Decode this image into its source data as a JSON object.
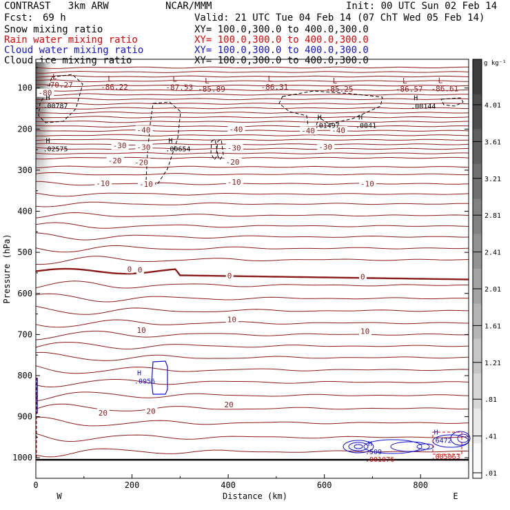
{
  "header": {
    "model": "CONTRAST   3km ARW",
    "org": "NCAR/MMM",
    "init": "Init: 00 UTC Sun 02 Feb 14",
    "fcst_label": "Fcst:",
    "fcst_value": "69 h",
    "valid": "Valid: 21 UTC Tue 04 Feb 14 (07 ChT Wed 05 Feb 14)"
  },
  "fields": [
    {
      "name": "Snow mixing ratio",
      "xy": "XY= 100.0,300.0 to 400.0,300.0",
      "color": "#000000"
    },
    {
      "name": "Rain water mixing ratio",
      "xy": "XY= 100.0,300.0 to 400.0,300.0",
      "color": "#e00000"
    },
    {
      "name": "Cloud water mixing ratio",
      "xy": "XY= 100.0,300.0 to 400.0,300.0",
      "color": "#1010d0"
    },
    {
      "name": "Cloud ice mixing ratio",
      "xy": "XY= 100.0,300.0 to 400.0,300.0",
      "color": "#000000"
    }
  ],
  "colors": {
    "temp": "#8b1a1a",
    "axis": "#000000",
    "cloud": "#1010d0",
    "rain": "#e00000"
  },
  "chart_data": {
    "type": "heatmap",
    "xlabel": "Distance (km)",
    "ylabel": "Pressure (hPa)",
    "xlim": [
      0,
      900
    ],
    "ylim": [
      1050,
      30
    ],
    "xticks": [
      "0",
      "200",
      "400",
      "600",
      "800"
    ],
    "xtick_values": [
      0,
      200,
      400,
      600,
      800
    ],
    "yticks": [
      "100",
      "200",
      "300",
      "400",
      "500",
      "600",
      "700",
      "800",
      "900",
      "1000"
    ],
    "ytick_values": [
      100,
      200,
      300,
      400,
      500,
      600,
      700,
      800,
      900,
      1000
    ],
    "left_end_label": "W",
    "right_end_label": "E",
    "colorbar": {
      "unit": "g kg⁻¹",
      "levels": [
        "4.01",
        "3.61",
        "3.21",
        "2.81",
        "2.41",
        "2.01",
        "1.61",
        "1.21",
        ".81",
        ".41",
        ".01"
      ],
      "values": [
        4.01,
        3.61,
        3.21,
        2.81,
        2.41,
        2.01,
        1.61,
        1.21,
        0.81,
        0.41,
        0.01
      ]
    },
    "temperature_contours": [
      {
        "label": "-80",
        "level": -80,
        "pressure": 130
      },
      {
        "label": "-40",
        "level": -40,
        "pressure": 205
      },
      {
        "label": "-30",
        "level": -30,
        "pressure": 242
      },
      {
        "label": "-20",
        "level": -20,
        "pressure": 282
      },
      {
        "label": "-10",
        "level": -10,
        "pressure": 334
      },
      {
        "label": "0",
        "level": 0,
        "pressure": 546
      },
      {
        "label": "10",
        "level": 10,
        "pressure": 672
      },
      {
        "label": "20",
        "level": 20,
        "pressure": 866
      }
    ],
    "temperature_labels": [
      {
        "text": "-80",
        "x": 5,
        "p": 115
      },
      {
        "text": "-40",
        "x": 210,
        "p": 205
      },
      {
        "text": "-40",
        "x": 402,
        "p": 204
      },
      {
        "text": "-40",
        "x": 552,
        "p": 207
      },
      {
        "text": "-40",
        "x": 615,
        "p": 206
      },
      {
        "text": "-30",
        "x": 160,
        "p": 243
      },
      {
        "text": "-30",
        "x": 210,
        "p": 247
      },
      {
        "text": "-30",
        "x": 398,
        "p": 249
      },
      {
        "text": "-30",
        "x": 588,
        "p": 246
      },
      {
        "text": "-20",
        "x": 150,
        "p": 280
      },
      {
        "text": "-20",
        "x": 205,
        "p": 284
      },
      {
        "text": "-20",
        "x": 395,
        "p": 283
      },
      {
        "text": "-10",
        "x": 125,
        "p": 335
      },
      {
        "text": "-10",
        "x": 215,
        "p": 337
      },
      {
        "text": "-10",
        "x": 398,
        "p": 332
      },
      {
        "text": "-10",
        "x": 675,
        "p": 336
      },
      {
        "text": "0",
        "x": 190,
        "p": 544
      },
      {
        "text": "0",
        "x": 212,
        "p": 546
      },
      {
        "text": "0",
        "x": 398,
        "p": 560
      },
      {
        "text": "0",
        "x": 675,
        "p": 563
      },
      {
        "text": "10",
        "x": 210,
        "p": 693
      },
      {
        "text": "10",
        "x": 398,
        "p": 667
      },
      {
        "text": "10",
        "x": 675,
        "p": 695
      },
      {
        "text": "20",
        "x": 130,
        "p": 894
      },
      {
        "text": "20",
        "x": 230,
        "p": 890
      },
      {
        "text": "20",
        "x": 392,
        "p": 874
      }
    ],
    "min_labels": [
      {
        "text": "-70.27",
        "x": 20,
        "p": 92
      },
      {
        "text": "-86.22",
        "x": 135,
        "p": 97
      },
      {
        "text": "-87.53",
        "x": 270,
        "p": 98
      },
      {
        "text": "-85.89",
        "x": 337,
        "p": 102
      },
      {
        "text": "-86.31",
        "x": 468,
        "p": 97
      },
      {
        "text": "-85.25",
        "x": 603,
        "p": 102
      },
      {
        "text": "-86.57",
        "x": 748,
        "p": 102
      },
      {
        "text": "-86.61",
        "x": 822,
        "p": 101
      }
    ],
    "ice_maxima": [
      {
        "text": ".00787",
        "x": 15,
        "p": 142
      },
      {
        "text": ".02575",
        "x": 15,
        "p": 247
      },
      {
        "text": ".00654",
        "x": 270,
        "p": 247
      },
      {
        "text": ".01497",
        "x": 580,
        "p": 190
      },
      {
        "text": ".0041",
        "x": 665,
        "p": 190
      },
      {
        "text": ".00144",
        "x": 780,
        "p": 143
      }
    ],
    "cloud_water_maxima": [
      {
        "text": ".0956",
        "x": 205,
        "p": 816
      },
      {
        "text": ".509",
        "x": 685,
        "p": 988
      },
      {
        "text": ".6472",
        "x": 822,
        "p": 960
      }
    ],
    "rain_maxima": [
      {
        "text": ".001076",
        "x": 685,
        "p": 1006
      },
      {
        "text": ".005063",
        "x": 822,
        "p": 1000
      }
    ]
  }
}
